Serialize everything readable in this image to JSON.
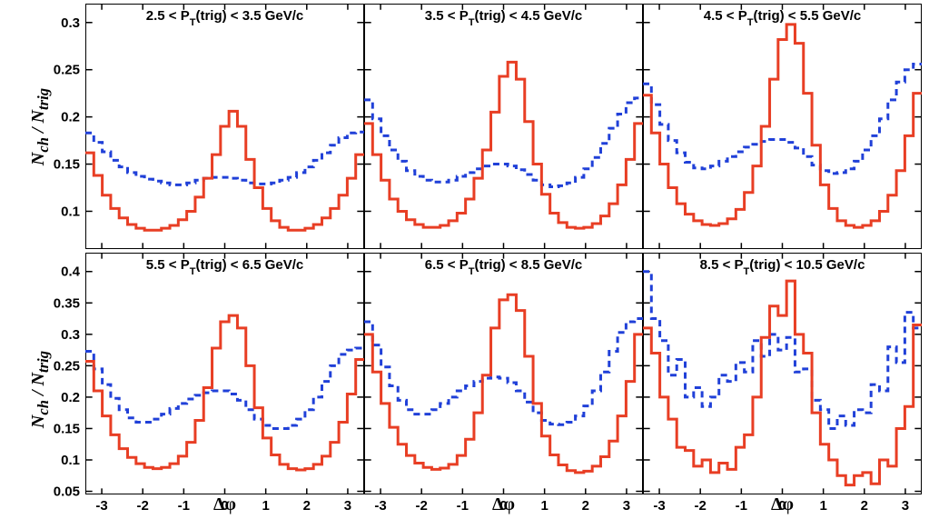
{
  "ylabel_html": "N<sub>ch</sub> / N<sub>trig</sub>",
  "xlabel": "Δφ",
  "colors": {
    "red": "#e83e24",
    "blue": "#2040d8",
    "axis": "#000000"
  },
  "dash_blue": "7 5",
  "xlim": [
    -3.4,
    3.4
  ],
  "xticks": [
    -3,
    -2,
    -1,
    0,
    1,
    2,
    3
  ],
  "line_width": 3,
  "font": {
    "title_size": 15,
    "tick_size": 15
  },
  "rows": [
    {
      "ylim": [
        0.06,
        0.32
      ],
      "yticks": [
        0.1,
        0.15,
        0.2,
        0.25,
        0.3
      ],
      "panels": [
        {
          "title": "2.5 < P_T(trig) < 3.5 GeV/c",
          "red": [
            0.162,
            0.138,
            0.117,
            0.103,
            0.093,
            0.086,
            0.082,
            0.08,
            0.08,
            0.082,
            0.085,
            0.091,
            0.1,
            0.115,
            0.135,
            0.16,
            0.19,
            0.206,
            0.19,
            0.155,
            0.125,
            0.103,
            0.09,
            0.083,
            0.08,
            0.08,
            0.082,
            0.086,
            0.093,
            0.103,
            0.117,
            0.135,
            0.16
          ],
          "blue": [
            0.183,
            0.173,
            0.163,
            0.154,
            0.147,
            0.141,
            0.137,
            0.134,
            0.132,
            0.13,
            0.128,
            0.128,
            0.13,
            0.133,
            0.135,
            0.136,
            0.136,
            0.135,
            0.133,
            0.13,
            0.129,
            0.129,
            0.13,
            0.133,
            0.136,
            0.141,
            0.147,
            0.154,
            0.162,
            0.17,
            0.178,
            0.183,
            0.184
          ]
        },
        {
          "title": "3.5 < P_T(trig) < 4.5 GeV/c",
          "red": [
            0.193,
            0.16,
            0.133,
            0.113,
            0.1,
            0.091,
            0.086,
            0.083,
            0.083,
            0.085,
            0.09,
            0.098,
            0.113,
            0.135,
            0.165,
            0.205,
            0.243,
            0.258,
            0.24,
            0.195,
            0.15,
            0.118,
            0.098,
            0.088,
            0.083,
            0.082,
            0.083,
            0.087,
            0.095,
            0.108,
            0.128,
            0.155,
            0.193
          ],
          "blue": [
            0.218,
            0.198,
            0.18,
            0.165,
            0.153,
            0.143,
            0.137,
            0.133,
            0.131,
            0.131,
            0.133,
            0.137,
            0.141,
            0.145,
            0.148,
            0.15,
            0.15,
            0.148,
            0.144,
            0.139,
            0.133,
            0.128,
            0.126,
            0.127,
            0.13,
            0.136,
            0.145,
            0.157,
            0.172,
            0.188,
            0.203,
            0.215,
            0.22
          ]
        },
        {
          "title": "4.5 < P_T(trig) < 5.5 GeV/c",
          "red": [
            0.223,
            0.183,
            0.15,
            0.125,
            0.108,
            0.097,
            0.09,
            0.086,
            0.085,
            0.087,
            0.092,
            0.102,
            0.12,
            0.148,
            0.19,
            0.24,
            0.282,
            0.298,
            0.278,
            0.225,
            0.17,
            0.128,
            0.103,
            0.09,
            0.085,
            0.083,
            0.085,
            0.09,
            0.1,
            0.117,
            0.143,
            0.18,
            0.225
          ],
          "blue": [
            0.235,
            0.213,
            0.192,
            0.175,
            0.162,
            0.152,
            0.146,
            0.145,
            0.148,
            0.153,
            0.158,
            0.163,
            0.168,
            0.171,
            0.174,
            0.176,
            0.176,
            0.173,
            0.167,
            0.158,
            0.149,
            0.143,
            0.14,
            0.141,
            0.145,
            0.153,
            0.165,
            0.18,
            0.198,
            0.218,
            0.237,
            0.25,
            0.256
          ]
        }
      ]
    },
    {
      "ylim": [
        0.045,
        0.43
      ],
      "yticks": [
        0.05,
        0.1,
        0.15,
        0.2,
        0.25,
        0.3,
        0.35,
        0.4
      ],
      "panels": [
        {
          "title": "5.5 < P_T(trig) < 6.5 GeV/c",
          "red": [
            0.257,
            0.21,
            0.17,
            0.14,
            0.118,
            0.104,
            0.094,
            0.088,
            0.086,
            0.088,
            0.094,
            0.106,
            0.128,
            0.163,
            0.215,
            0.278,
            0.32,
            0.33,
            0.31,
            0.25,
            0.183,
            0.135,
            0.108,
            0.093,
            0.086,
            0.084,
            0.086,
            0.093,
            0.106,
            0.128,
            0.16,
            0.205,
            0.26
          ],
          "blue": [
            0.273,
            0.245,
            0.22,
            0.198,
            0.18,
            0.167,
            0.16,
            0.16,
            0.165,
            0.173,
            0.182,
            0.19,
            0.197,
            0.203,
            0.207,
            0.21,
            0.21,
            0.205,
            0.195,
            0.18,
            0.165,
            0.155,
            0.15,
            0.15,
            0.155,
            0.165,
            0.18,
            0.2,
            0.225,
            0.25,
            0.268,
            0.275,
            0.278
          ]
        },
        {
          "title": "6.5 < P_T(trig) < 8.5 GeV/c",
          "red": [
            0.3,
            0.24,
            0.19,
            0.152,
            0.125,
            0.107,
            0.095,
            0.088,
            0.085,
            0.087,
            0.093,
            0.107,
            0.133,
            0.175,
            0.235,
            0.31,
            0.355,
            0.363,
            0.338,
            0.265,
            0.19,
            0.138,
            0.108,
            0.092,
            0.083,
            0.08,
            0.082,
            0.09,
            0.105,
            0.13,
            0.17,
            0.225,
            0.3
          ],
          "blue": [
            0.32,
            0.283,
            0.248,
            0.218,
            0.195,
            0.18,
            0.173,
            0.173,
            0.18,
            0.19,
            0.2,
            0.21,
            0.218,
            0.225,
            0.23,
            0.232,
            0.23,
            0.223,
            0.21,
            0.192,
            0.175,
            0.163,
            0.157,
            0.156,
            0.16,
            0.17,
            0.186,
            0.21,
            0.24,
            0.273,
            0.303,
            0.32,
            0.325
          ]
        },
        {
          "title": "8.5 < P_T(trig) < 10.5 GeV/c",
          "red": [
            0.31,
            0.27,
            0.2,
            0.165,
            0.12,
            0.115,
            0.09,
            0.1,
            0.08,
            0.095,
            0.085,
            0.12,
            0.14,
            0.2,
            0.295,
            0.345,
            0.33,
            0.385,
            0.3,
            0.27,
            0.175,
            0.125,
            0.1,
            0.075,
            0.06,
            0.075,
            0.08,
            0.062,
            0.1,
            0.09,
            0.15,
            0.185,
            0.315
          ],
          "blue": [
            0.4,
            0.325,
            0.29,
            0.235,
            0.26,
            0.2,
            0.215,
            0.185,
            0.2,
            0.235,
            0.225,
            0.255,
            0.24,
            0.29,
            0.265,
            0.3,
            0.275,
            0.295,
            0.24,
            0.245,
            0.195,
            0.18,
            0.15,
            0.17,
            0.155,
            0.18,
            0.175,
            0.22,
            0.21,
            0.28,
            0.255,
            0.335,
            0.31
          ]
        }
      ]
    }
  ]
}
